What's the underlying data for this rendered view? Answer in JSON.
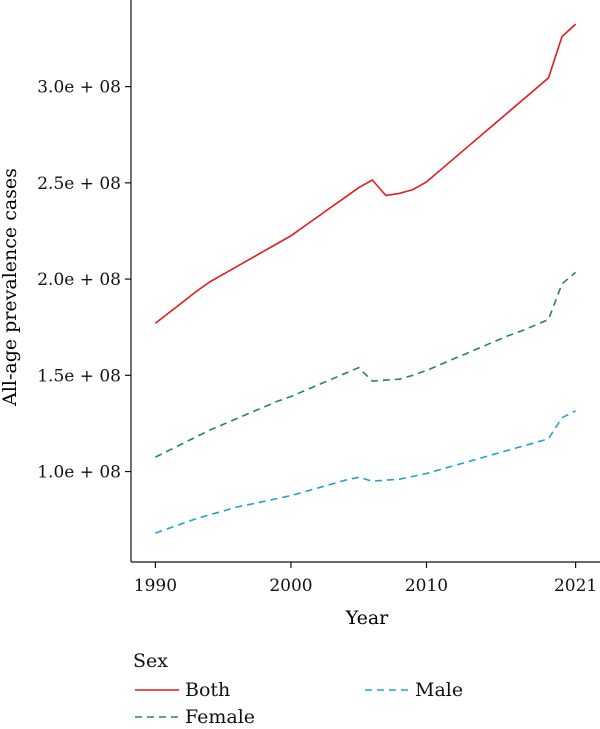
{
  "chart_data": {
    "type": "line",
    "xlabel": "Year",
    "ylabel": "All-age prevalence cases",
    "x_ticks": [
      1990,
      2000,
      2010,
      2021
    ],
    "y_ticks": [
      100000000,
      150000000,
      200000000,
      250000000,
      300000000
    ],
    "y_tick_labels": [
      "1.0e + 08",
      "1.5e + 08",
      "2.0e + 08",
      "2.5e + 08",
      "3.0e + 08"
    ],
    "xlim": [
      1988.2,
      2022.8
    ],
    "ylim": [
      53000000,
      345000000
    ],
    "x": [
      1990,
      1991,
      1992,
      1993,
      1994,
      1995,
      1996,
      1997,
      1998,
      1999,
      2000,
      2001,
      2002,
      2003,
      2004,
      2005,
      2006,
      2007,
      2008,
      2009,
      2010,
      2011,
      2012,
      2013,
      2014,
      2015,
      2016,
      2017,
      2018,
      2019,
      2020,
      2021
    ],
    "series": [
      {
        "name": "Both",
        "color": "#e41a1c",
        "dash": "solid",
        "values": [
          177000000,
          182500000,
          188000000,
          193500000,
          198500000,
          202500000,
          206500000,
          210500000,
          214500000,
          218500000,
          222500000,
          227500000,
          232500000,
          237500000,
          242500000,
          247500000,
          251500000,
          243500000,
          244500000,
          246500000,
          250500000,
          256500000,
          262500000,
          268500000,
          274500000,
          280500000,
          286500000,
          292500000,
          298500000,
          304500000,
          326000000,
          332500000
        ]
      },
      {
        "name": "Female",
        "color": "#238b45",
        "dash": "dashed",
        "values": [
          107500000,
          111000000,
          114500000,
          118000000,
          121500000,
          124500000,
          127500000,
          130500000,
          133500000,
          136500000,
          139000000,
          142000000,
          145000000,
          148000000,
          151000000,
          154000000,
          147000000,
          147500000,
          148000000,
          150000000,
          152500000,
          155500000,
          158500000,
          161500000,
          164500000,
          167500000,
          170500000,
          173000000,
          176000000,
          179000000,
          197500000,
          203500000
        ]
      },
      {
        "name": "Male",
        "color": "#1ba3d6",
        "dash": "dashed",
        "values": [
          68000000,
          70500000,
          73000000,
          75500000,
          77500000,
          79500000,
          81500000,
          83000000,
          84500000,
          86000000,
          87500000,
          89500000,
          91500000,
          93500000,
          95500000,
          97000000,
          95000000,
          95500000,
          96000000,
          97500000,
          99000000,
          101000000,
          103000000,
          105000000,
          107000000,
          109000000,
          111000000,
          113000000,
          115000000,
          117000000,
          128000000,
          131500000
        ]
      }
    ],
    "legend": {
      "title": "Sex",
      "position": "bottom",
      "items": [
        {
          "label": "Both",
          "color": "#e41a1c",
          "dash": "solid"
        },
        {
          "label": "Male",
          "color": "#1ba3d6",
          "dash": "dashed"
        },
        {
          "label": "Female",
          "color": "#238b45",
          "dash": "dashed"
        }
      ]
    },
    "grid": false
  }
}
